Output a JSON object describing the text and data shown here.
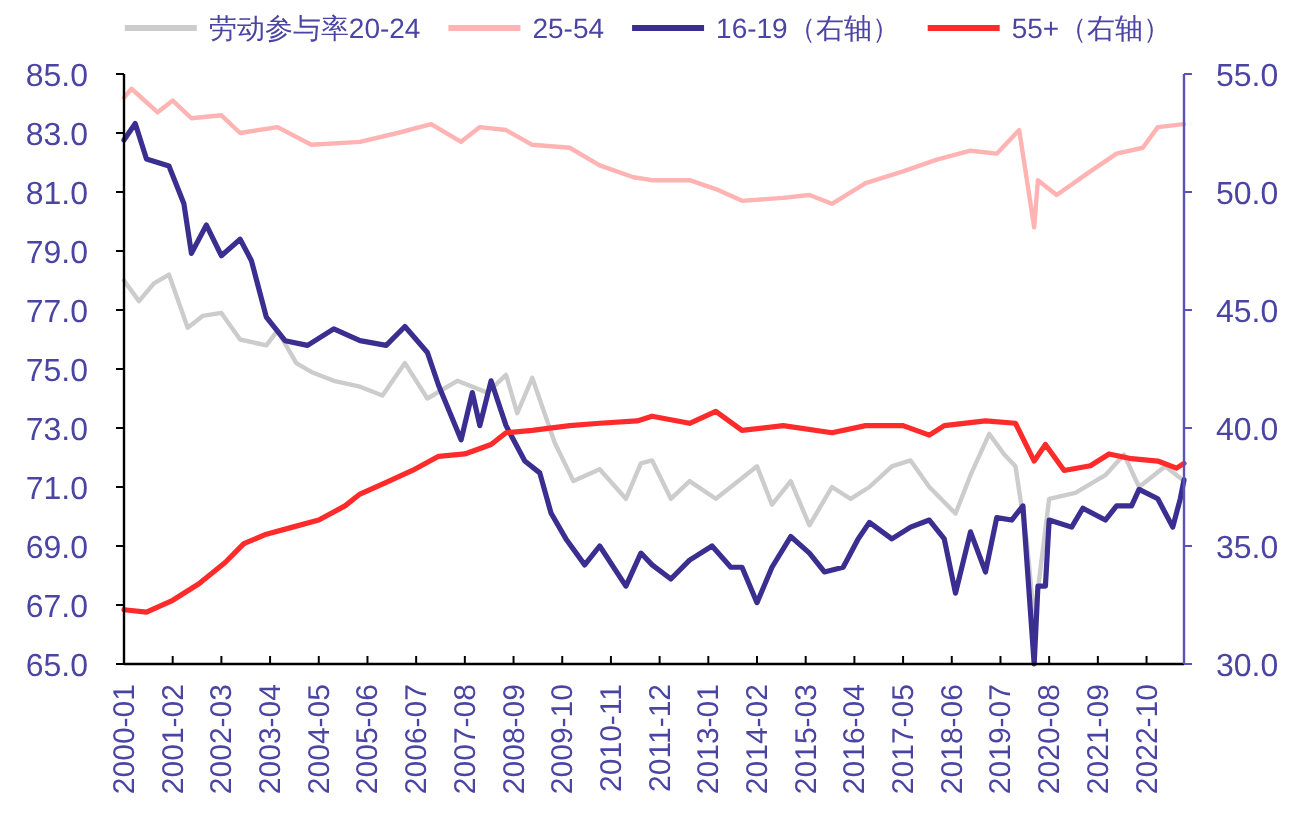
{
  "chart_data": {
    "type": "line",
    "legend": "top",
    "xlim": [
      "2000-01",
      "2023-08"
    ],
    "xticks": [
      "2000-01",
      "2001-02",
      "2002-03",
      "2003-04",
      "2004-05",
      "2005-06",
      "2006-07",
      "2007-08",
      "2008-09",
      "2009-10",
      "2010-11",
      "2011-12",
      "2013-01",
      "2014-02",
      "2015-03",
      "2016-04",
      "2017-05",
      "2018-06",
      "2019-07",
      "2020-08",
      "2021-09",
      "2022-10"
    ],
    "ylim": [
      65,
      85
    ],
    "yticks": [
      {
        "value": 65,
        "label": "65.0"
      },
      {
        "value": 67,
        "label": "67.0"
      },
      {
        "value": 69,
        "label": "69.0"
      },
      {
        "value": 71,
        "label": "71.0"
      },
      {
        "value": 73,
        "label": "73.0"
      },
      {
        "value": 75,
        "label": "75.0"
      },
      {
        "value": 77,
        "label": "77.0"
      },
      {
        "value": 79,
        "label": "79.0"
      },
      {
        "value": 81,
        "label": "81.0"
      },
      {
        "value": 83,
        "label": "83.0"
      },
      {
        "value": 85,
        "label": "85.0"
      }
    ],
    "y2lim": [
      30,
      55
    ],
    "y2ticks": [
      {
        "value": 30,
        "label": "30.0"
      },
      {
        "value": 35,
        "label": "35.0"
      },
      {
        "value": 40,
        "label": "40.0"
      },
      {
        "value": 45,
        "label": "45.0"
      },
      {
        "value": 50,
        "label": "50.0"
      },
      {
        "value": 55,
        "label": "55.0"
      }
    ],
    "series": [
      {
        "name": "劳动参与率20-24",
        "color": "#cccccc",
        "x": [
          "2000-01",
          "2000-05",
          "2000-09",
          "2001-01",
          "2001-06",
          "2001-10",
          "2002-03",
          "2002-08",
          "2003-03",
          "2003-06",
          "2003-11",
          "2004-03",
          "2004-09",
          "2005-04",
          "2005-10",
          "2006-04",
          "2006-10",
          "2007-06",
          "2008-02",
          "2008-07",
          "2008-10",
          "2009-02",
          "2009-08",
          "2010-01",
          "2010-08",
          "2011-03",
          "2011-07",
          "2011-10",
          "2012-03",
          "2012-08",
          "2013-03",
          "2013-07",
          "2014-02",
          "2014-06",
          "2014-11",
          "2015-04",
          "2015-10",
          "2016-03",
          "2016-08",
          "2017-02",
          "2017-07",
          "2017-12",
          "2018-07",
          "2018-11",
          "2019-04",
          "2019-08",
          "2019-11",
          "2020-02",
          "2020-04",
          "2020-08",
          "2021-03",
          "2021-11",
          "2022-04",
          "2022-08",
          "2023-03",
          "2023-08"
        ],
        "values": [
          78.0,
          77.3,
          77.9,
          78.2,
          76.4,
          76.8,
          76.9,
          76.0,
          75.8,
          76.3,
          75.2,
          74.9,
          74.6,
          74.4,
          74.1,
          75.2,
          74.0,
          74.6,
          74.2,
          74.8,
          73.5,
          74.7,
          72.5,
          71.2,
          71.6,
          70.6,
          71.8,
          71.9,
          70.6,
          71.2,
          70.6,
          71.0,
          71.7,
          70.4,
          71.2,
          69.7,
          71.0,
          70.6,
          71.0,
          71.7,
          71.9,
          71.0,
          70.1,
          71.4,
          72.8,
          72.1,
          71.7,
          69.2,
          66.5,
          70.6,
          70.8,
          71.4,
          72.1,
          71.0,
          71.7,
          71.2
        ]
      },
      {
        "name": "25-54",
        "color": "#ffb3b3",
        "x": [
          "2000-01",
          "2000-03",
          "2000-10",
          "2001-02",
          "2001-07",
          "2002-03",
          "2002-08",
          "2003-06",
          "2004-03",
          "2005-04",
          "2006-02",
          "2006-11",
          "2007-07",
          "2007-12",
          "2008-07",
          "2009-02",
          "2009-12",
          "2010-08",
          "2011-05",
          "2011-10",
          "2012-08",
          "2013-03",
          "2013-10",
          "2014-09",
          "2015-04",
          "2015-10",
          "2016-07",
          "2017-05",
          "2018-02",
          "2018-11",
          "2019-06",
          "2019-12",
          "2020-04",
          "2020-05",
          "2020-10",
          "2021-07",
          "2022-02",
          "2022-09",
          "2023-01",
          "2023-08"
        ],
        "values": [
          84.2,
          84.5,
          83.7,
          84.1,
          83.5,
          83.6,
          83.0,
          83.2,
          82.6,
          82.7,
          83.0,
          83.3,
          82.7,
          83.2,
          83.1,
          82.6,
          82.5,
          81.9,
          81.5,
          81.4,
          81.4,
          81.1,
          80.7,
          80.8,
          80.9,
          80.6,
          81.3,
          81.7,
          82.1,
          82.4,
          82.3,
          83.1,
          79.8,
          81.4,
          80.9,
          81.7,
          82.3,
          82.5,
          83.2,
          83.3
        ]
      },
      {
        "name": "16-19（右轴）",
        "color": "#3a2f91",
        "axis": "y2",
        "x": [
          "2000-01",
          "2000-04",
          "2000-07",
          "2001-01",
          "2001-05",
          "2001-07",
          "2001-11",
          "2002-03",
          "2002-08",
          "2002-11",
          "2003-03",
          "2003-08",
          "2004-02",
          "2004-09",
          "2005-04",
          "2005-11",
          "2006-04",
          "2006-10",
          "2007-01",
          "2007-07",
          "2007-10",
          "2007-12",
          "2008-03",
          "2008-07",
          "2008-12",
          "2009-04",
          "2009-07",
          "2009-11",
          "2010-04",
          "2010-08",
          "2011-03",
          "2011-07",
          "2011-10",
          "2012-03",
          "2012-08",
          "2013-02",
          "2013-07",
          "2013-10",
          "2014-02",
          "2014-06",
          "2014-11",
          "2015-04",
          "2015-08",
          "2016-01",
          "2016-05",
          "2016-08",
          "2017-02",
          "2017-07",
          "2017-12",
          "2018-04",
          "2018-07",
          "2018-11",
          "2019-03",
          "2019-06",
          "2019-10",
          "2020-01",
          "2020-04",
          "2020-05",
          "2020-07",
          "2020-08",
          "2021-02",
          "2021-05",
          "2021-11",
          "2022-02",
          "2022-06",
          "2022-08",
          "2023-01",
          "2023-05",
          "2023-07",
          "2023-08"
        ],
        "values": [
          52.2,
          52.9,
          51.4,
          51.1,
          49.5,
          47.4,
          48.6,
          47.3,
          48.0,
          47.1,
          44.7,
          43.7,
          43.5,
          44.2,
          43.7,
          43.5,
          44.3,
          43.2,
          41.8,
          39.5,
          41.5,
          40.1,
          42.0,
          40.1,
          38.6,
          38.1,
          36.4,
          35.3,
          34.2,
          35.0,
          33.3,
          34.7,
          34.2,
          33.6,
          34.4,
          35.0,
          34.1,
          34.1,
          32.6,
          34.1,
          35.4,
          34.7,
          33.9,
          34.1,
          35.3,
          36.0,
          35.3,
          35.8,
          36.1,
          35.3,
          33.0,
          35.6,
          33.9,
          36.2,
          36.1,
          36.7,
          30.0,
          33.3,
          33.3,
          36.1,
          35.8,
          36.6,
          36.1,
          36.7,
          36.7,
          37.4,
          37.0,
          35.8,
          37.0,
          37.8
        ]
      },
      {
        "name": "55+（右轴）",
        "color": "#ff2b2b",
        "axis": "y2",
        "x": [
          "2000-01",
          "2000-07",
          "2001-02",
          "2001-09",
          "2002-04",
          "2002-09",
          "2003-03",
          "2003-10",
          "2004-05",
          "2004-12",
          "2005-04",
          "2005-11",
          "2006-06",
          "2007-01",
          "2007-08",
          "2008-03",
          "2008-07",
          "2009-02",
          "2009-12",
          "2010-08",
          "2011-06",
          "2011-10",
          "2012-08",
          "2013-03",
          "2013-10",
          "2014-09",
          "2015-10",
          "2016-07",
          "2017-05",
          "2017-12",
          "2018-04",
          "2019-03",
          "2019-11",
          "2020-04",
          "2020-07",
          "2020-12",
          "2021-07",
          "2021-12",
          "2022-06",
          "2023-01",
          "2023-06",
          "2023-08"
        ],
        "values": [
          32.3,
          32.2,
          32.7,
          33.4,
          34.3,
          35.1,
          35.5,
          35.8,
          36.1,
          36.7,
          37.2,
          37.7,
          38.2,
          38.8,
          38.9,
          39.3,
          39.8,
          39.9,
          40.1,
          40.2,
          40.3,
          40.5,
          40.2,
          40.7,
          39.9,
          40.1,
          39.8,
          40.1,
          40.1,
          39.7,
          40.1,
          40.3,
          40.2,
          38.6,
          39.3,
          38.2,
          38.4,
          38.9,
          38.7,
          38.6,
          38.3,
          38.5
        ]
      }
    ]
  }
}
